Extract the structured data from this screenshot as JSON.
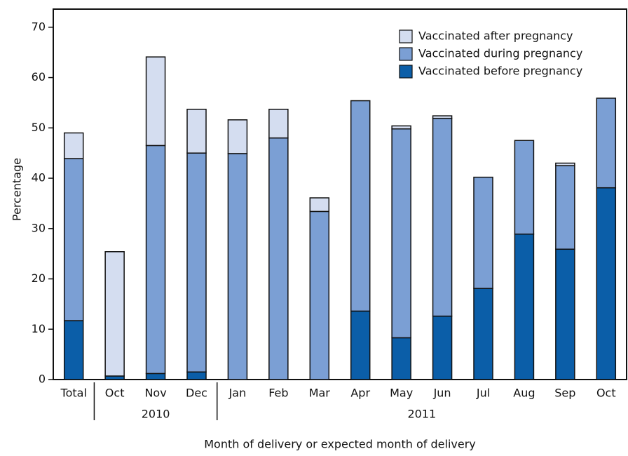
{
  "chart_data": {
    "type": "stacked_bar",
    "x_label": "Month of delivery or expected month of delivery",
    "y_label": "Percentage",
    "categories": [
      "Total",
      "Oct",
      "Nov",
      "Dec",
      "Jan",
      "Feb",
      "Mar",
      "Apr",
      "May",
      "Jun",
      "Jul",
      "Aug",
      "Sep",
      "Oct"
    ],
    "category_groups": [
      null,
      "2010",
      "2010",
      "2010",
      "2011",
      "2011",
      "2011",
      "2011",
      "2011",
      "2011",
      "2011",
      "2011",
      "2011",
      "2011"
    ],
    "series": [
      {
        "name": "Vaccinated before pregnancy",
        "color": "#0b5ea8",
        "values": [
          11.7,
          0.7,
          1.2,
          1.5,
          0,
          0,
          0,
          13.6,
          8.3,
          12.6,
          18.1,
          28.9,
          25.9,
          38.1
        ]
      },
      {
        "name": "Vaccinated during pregnancy",
        "color": "#7b9fd4",
        "values": [
          32.2,
          0,
          45.3,
          43.5,
          44.9,
          48,
          33.4,
          41.8,
          41.5,
          39.3,
          22.1,
          18.6,
          16.6,
          17.8
        ]
      },
      {
        "name": "Vaccinated after pregnancy",
        "color": "#d4ddf0",
        "values": [
          5.1,
          24.7,
          17.6,
          8.7,
          6.7,
          5.7,
          2.7,
          0,
          0.6,
          0.5,
          0,
          0,
          0.5,
          0
        ]
      }
    ],
    "ylim": [
      0,
      73.6
    ],
    "yticks": [
      0,
      10,
      20,
      30,
      40,
      50,
      60,
      70
    ],
    "legend_position": "upper right"
  }
}
